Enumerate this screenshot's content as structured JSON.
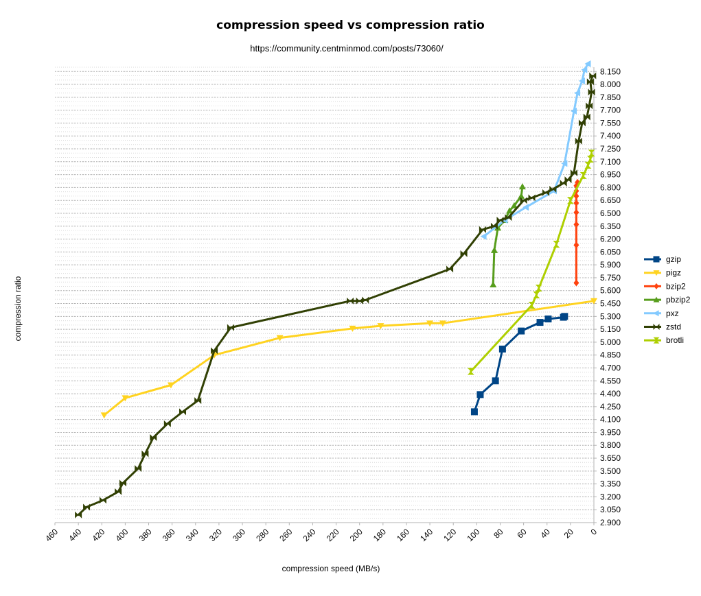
{
  "chart_data": {
    "type": "line",
    "title": "compression speed vs compression ratio",
    "subtitle": "https://community.centminmod.com/posts/73060/",
    "xlabel": "compression speed (MB/s)",
    "ylabel": "compression ratio",
    "xlim": [
      460,
      0
    ],
    "x_reversed": true,
    "ylim": [
      2.9,
      8.2
    ],
    "y_axis_position": "right",
    "x_ticks": [
      460,
      440,
      420,
      400,
      380,
      360,
      340,
      320,
      300,
      280,
      260,
      240,
      220,
      200,
      180,
      160,
      140,
      120,
      100,
      80,
      60,
      40,
      20,
      0
    ],
    "y_ticks": [
      "2.900",
      "3.050",
      "3.200",
      "3.350",
      "3.500",
      "3.650",
      "3.800",
      "3.950",
      "4.100",
      "4.250",
      "4.400",
      "4.550",
      "4.700",
      "4.850",
      "5.000",
      "5.150",
      "5.300",
      "5.450",
      "5.600",
      "5.750",
      "5.900",
      "6.050",
      "6.200",
      "6.350",
      "6.500",
      "6.650",
      "6.800",
      "6.950",
      "7.100",
      "7.250",
      "7.400",
      "7.550",
      "7.700",
      "7.850",
      "8.000",
      "8.150"
    ],
    "grid": true,
    "legend_position": "right",
    "series": [
      {
        "name": "gzip",
        "color": "#004586",
        "marker": "square",
        "x": [
          102,
          97,
          84,
          78,
          62,
          46,
          39,
          26,
          25
        ],
        "y": [
          4.19,
          4.39,
          4.55,
          4.92,
          5.13,
          5.23,
          5.27,
          5.29,
          5.3
        ]
      },
      {
        "name": "pigz",
        "color": "#ffd320",
        "marker": "triangle-down",
        "x": [
          418,
          400,
          361,
          324,
          268,
          206,
          182,
          140,
          129,
          0
        ],
        "y": [
          4.15,
          4.35,
          4.5,
          4.85,
          5.05,
          5.16,
          5.19,
          5.22,
          5.22,
          5.48
        ]
      },
      {
        "name": "bzip2",
        "color": "#ff420e",
        "marker": "diamond",
        "x": [
          15,
          15,
          15,
          15,
          15,
          15,
          15,
          15,
          14
        ],
        "y": [
          5.69,
          6.13,
          6.37,
          6.51,
          6.62,
          6.7,
          6.76,
          6.82,
          6.86
        ]
      },
      {
        "name": "pbzip2",
        "color": "#579d1c",
        "marker": "triangle-up",
        "x": [
          86,
          85,
          82,
          76,
          72,
          68,
          62,
          61
        ],
        "y": [
          5.67,
          6.07,
          6.33,
          6.42,
          6.53,
          6.59,
          6.7,
          6.81
        ]
      },
      {
        "name": "pxz",
        "color": "#83caff",
        "marker": "triangle-left",
        "x": [
          94,
          76,
          58,
          34,
          25,
          17,
          14,
          10,
          8,
          5
        ],
        "y": [
          6.23,
          6.42,
          6.57,
          6.76,
          7.08,
          7.69,
          7.9,
          8.04,
          8.17,
          8.24
        ]
      },
      {
        "name": "zstd",
        "color": "#314004",
        "marker": "bowtie",
        "x": [
          440,
          433,
          419,
          406,
          402,
          389,
          383,
          376,
          364,
          351,
          338,
          324,
          310,
          208,
          200,
          195,
          123,
          111,
          95,
          85,
          80,
          73,
          60,
          53,
          41,
          35,
          26,
          22,
          17,
          13,
          10,
          6,
          4,
          2,
          3,
          1
        ],
        "y": [
          2.99,
          3.08,
          3.16,
          3.26,
          3.36,
          3.53,
          3.7,
          3.89,
          4.05,
          4.19,
          4.32,
          4.9,
          5.17,
          5.48,
          5.48,
          5.49,
          5.85,
          6.03,
          6.31,
          6.35,
          6.42,
          6.45,
          6.65,
          6.68,
          6.74,
          6.78,
          6.85,
          6.89,
          6.97,
          7.34,
          7.55,
          7.62,
          7.75,
          7.91,
          8.03,
          8.1
        ]
      },
      {
        "name": "brotli",
        "color": "#aecf00",
        "marker": "hourglass",
        "x": [
          105,
          53,
          49,
          47,
          32,
          20,
          9,
          5,
          3,
          2
        ],
        "y": [
          4.66,
          5.43,
          5.55,
          5.63,
          6.14,
          6.65,
          6.94,
          7.06,
          7.13,
          7.2
        ]
      }
    ]
  }
}
